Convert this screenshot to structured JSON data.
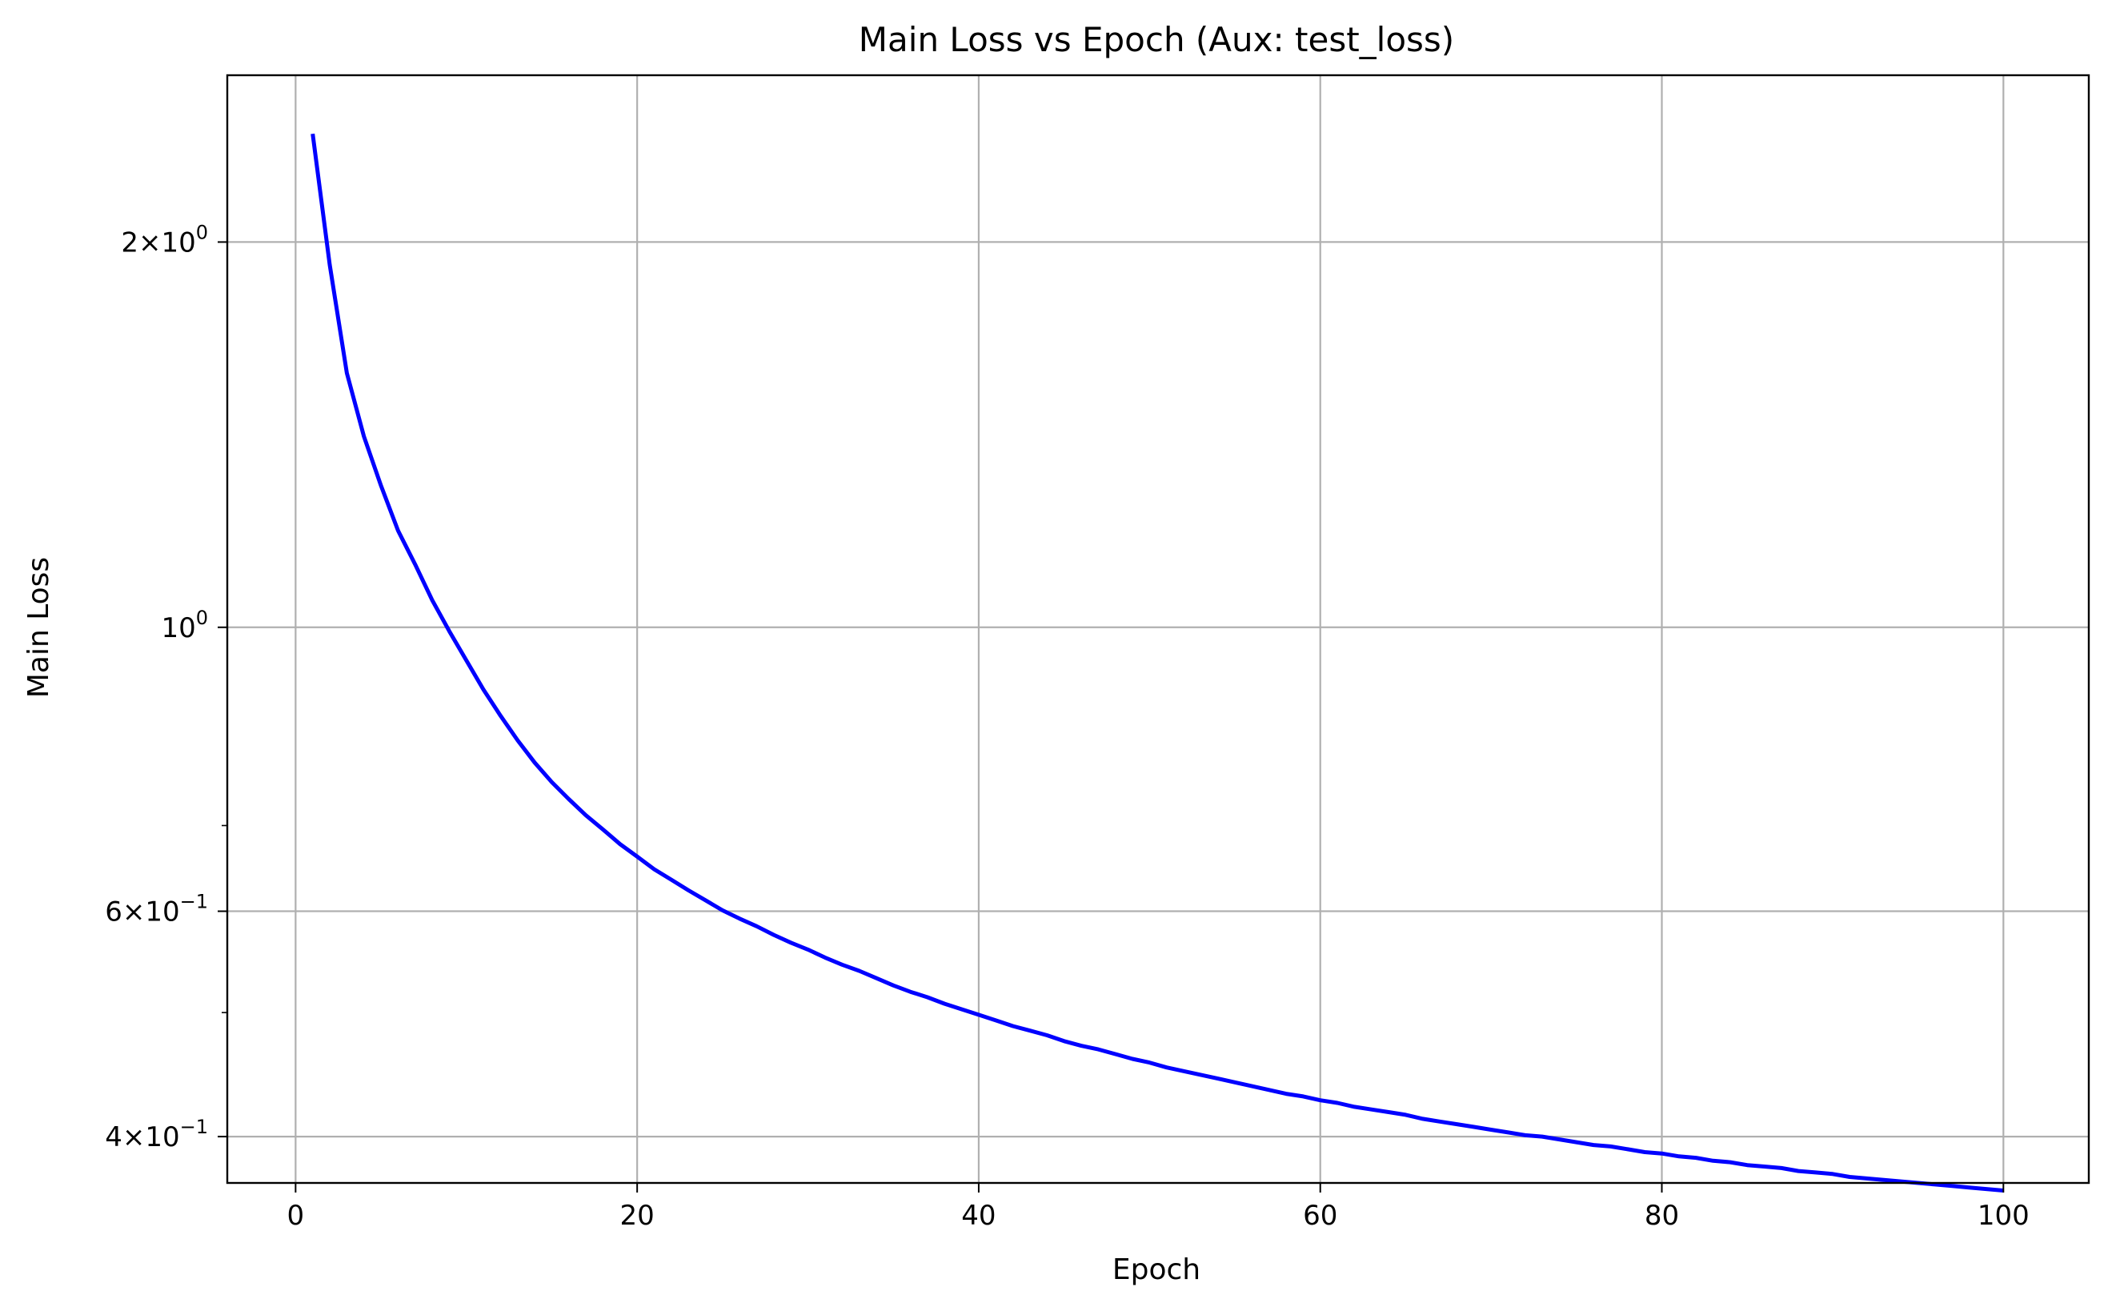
{
  "chart_data": {
    "type": "line",
    "title": "Main Loss vs Epoch (Aux: test_loss)",
    "xlabel": "Epoch",
    "ylabel": "Main Loss",
    "x_scale": "linear",
    "y_scale": "log",
    "xlim": [
      -4,
      105
    ],
    "ylim": [
      0.368,
      2.7
    ],
    "grid": true,
    "x_ticks": [
      {
        "value": 0,
        "label": "0"
      },
      {
        "value": 20,
        "label": "20"
      },
      {
        "value": 40,
        "label": "40"
      },
      {
        "value": 60,
        "label": "60"
      },
      {
        "value": 80,
        "label": "80"
      },
      {
        "value": 100,
        "label": "100"
      }
    ],
    "y_major_ticks": [
      {
        "value": 2,
        "mant": "2",
        "exp": "0"
      },
      {
        "value": 1,
        "mant": "",
        "exp": "0"
      },
      {
        "value": 0.6,
        "mant": "6",
        "exp": "−1"
      },
      {
        "value": 0.4,
        "mant": "4",
        "exp": "−1"
      }
    ],
    "y_minor_ticks": [
      0.7,
      0.5
    ],
    "series": [
      {
        "color": "#0000ff",
        "x": [
          1,
          2,
          3,
          4,
          5,
          6,
          7,
          8,
          9,
          10,
          11,
          12,
          13,
          14,
          15,
          16,
          17,
          18,
          19,
          20,
          21,
          22,
          23,
          24,
          25,
          26,
          27,
          28,
          29,
          30,
          31,
          32,
          33,
          34,
          35,
          36,
          37,
          38,
          39,
          40,
          41,
          42,
          43,
          44,
          45,
          46,
          47,
          48,
          49,
          50,
          51,
          52,
          53,
          54,
          55,
          56,
          57,
          58,
          59,
          60,
          61,
          62,
          63,
          64,
          65,
          66,
          67,
          68,
          69,
          70,
          71,
          72,
          73,
          74,
          75,
          76,
          77,
          78,
          79,
          80,
          81,
          82,
          83,
          84,
          85,
          86,
          87,
          88,
          89,
          90,
          91,
          92,
          93,
          94,
          95,
          96,
          97,
          98,
          99,
          100
        ],
        "y": [
          2.43,
          1.92,
          1.58,
          1.41,
          1.29,
          1.19,
          1.12,
          1.05,
          0.993,
          0.942,
          0.894,
          0.853,
          0.816,
          0.784,
          0.757,
          0.734,
          0.713,
          0.695,
          0.677,
          0.662,
          0.647,
          0.635,
          0.623,
          0.612,
          0.601,
          0.592,
          0.584,
          0.575,
          0.567,
          0.56,
          0.552,
          0.545,
          0.539,
          0.532,
          0.525,
          0.519,
          0.514,
          0.508,
          0.503,
          0.498,
          0.493,
          0.488,
          0.484,
          0.48,
          0.475,
          0.471,
          0.468,
          0.464,
          0.46,
          0.457,
          0.453,
          0.45,
          0.447,
          0.444,
          0.441,
          0.438,
          0.435,
          0.432,
          0.43,
          0.427,
          0.425,
          0.422,
          0.42,
          0.418,
          0.416,
          0.413,
          0.411,
          0.409,
          0.407,
          0.405,
          0.403,
          0.401,
          0.4,
          0.398,
          0.396,
          0.394,
          0.393,
          0.391,
          0.389,
          0.388,
          0.386,
          0.385,
          0.383,
          0.382,
          0.38,
          0.379,
          0.378,
          0.376,
          0.375,
          0.374,
          0.372,
          0.371,
          0.37,
          0.369,
          0.368,
          0.367,
          0.366,
          0.365,
          0.364,
          0.363
        ]
      }
    ]
  }
}
